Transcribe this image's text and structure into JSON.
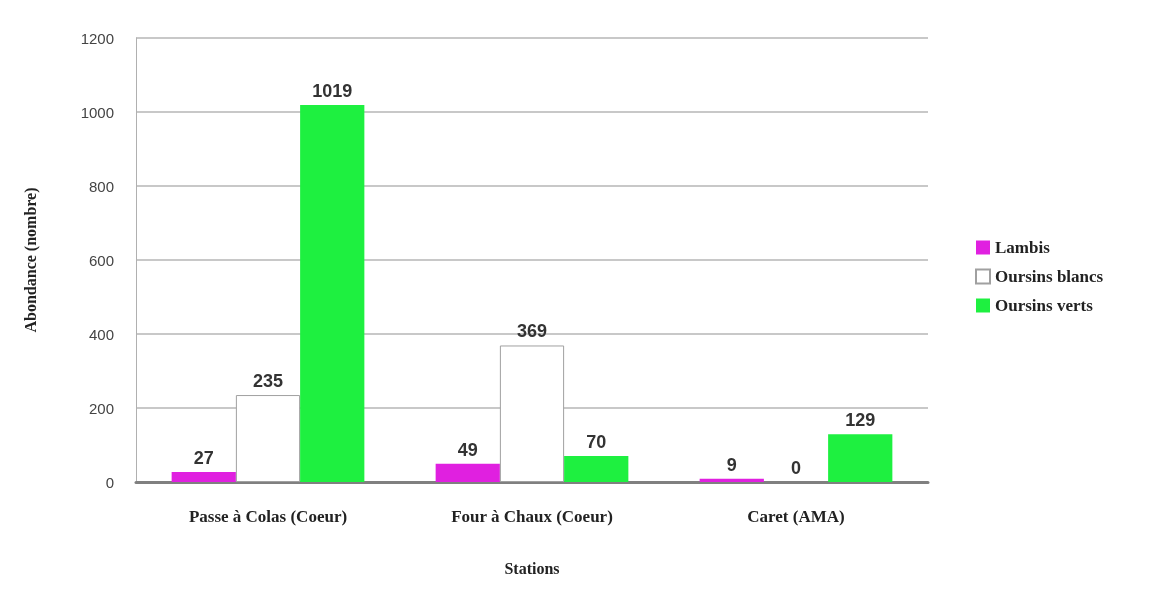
{
  "chart_data": {
    "type": "bar",
    "xlabel": "Stations",
    "ylabel": "Abondance (nombre)",
    "categories": [
      "Passe à Colas (Coeur)",
      "Four à Chaux (Coeur)",
      "Caret (AMA)"
    ],
    "series": [
      {
        "name": "Lambis",
        "color": "#e020e0",
        "values": [
          27,
          49,
          9
        ]
      },
      {
        "name": "Oursins blancs",
        "color": "#ffffff",
        "values": [
          235,
          369,
          0
        ]
      },
      {
        "name": "Oursins verts",
        "color": "#1ef040",
        "values": [
          1019,
          70,
          129
        ]
      }
    ],
    "ylim": [
      0,
      1200
    ],
    "yticks": [
      0,
      200,
      400,
      600,
      800,
      1000,
      1200
    ],
    "grid": "y",
    "legend": "right",
    "data_labels": true
  }
}
